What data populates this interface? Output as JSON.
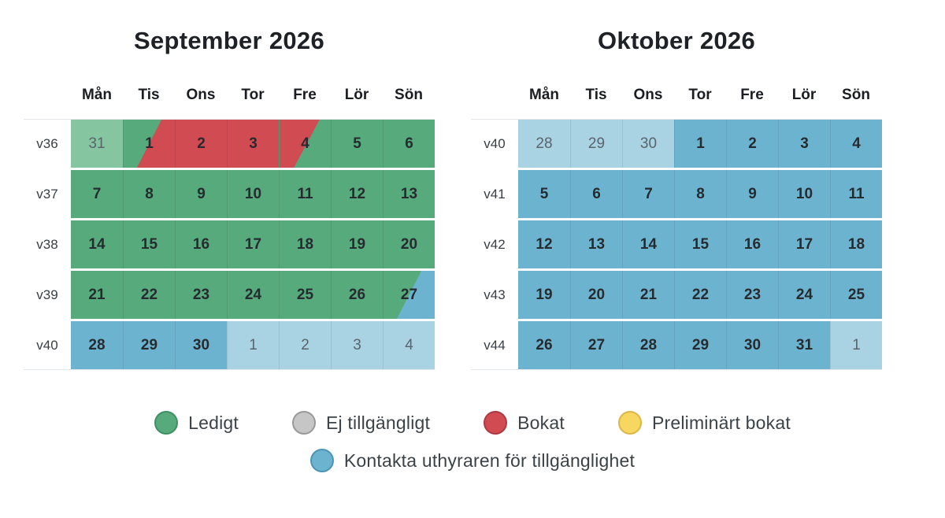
{
  "weekdays": [
    "Mån",
    "Tis",
    "Ons",
    "Tor",
    "Fre",
    "Lör",
    "Sön"
  ],
  "colors": {
    "free": "#56aa7c",
    "free_faded": "#85c6a1",
    "booked": "#d14b53",
    "contact": "#6cb3d0",
    "contact_faded": "#a9d2e3",
    "unavailable": "#c6c6c6",
    "tentative": "#f7d75f"
  },
  "calendars": [
    {
      "title": "September 2026",
      "weeks": [
        {
          "label": "v36",
          "days": [
            {
              "label": "31",
              "base": "free_faded",
              "muted": true
            },
            {
              "label": "1",
              "base": "free",
              "overlay": {
                "type": "booked",
                "side": "right"
              }
            },
            {
              "label": "2",
              "base": "booked"
            },
            {
              "label": "3",
              "base": "booked"
            },
            {
              "label": "4",
              "base": "free",
              "overlay": {
                "type": "booked",
                "side": "left"
              }
            },
            {
              "label": "5",
              "base": "free"
            },
            {
              "label": "6",
              "base": "free"
            }
          ]
        },
        {
          "label": "v37",
          "days": [
            {
              "label": "7",
              "base": "free"
            },
            {
              "label": "8",
              "base": "free"
            },
            {
              "label": "9",
              "base": "free"
            },
            {
              "label": "10",
              "base": "free"
            },
            {
              "label": "11",
              "base": "free"
            },
            {
              "label": "12",
              "base": "free"
            },
            {
              "label": "13",
              "base": "free"
            }
          ]
        },
        {
          "label": "v38",
          "days": [
            {
              "label": "14",
              "base": "free"
            },
            {
              "label": "15",
              "base": "free"
            },
            {
              "label": "16",
              "base": "free"
            },
            {
              "label": "17",
              "base": "free"
            },
            {
              "label": "18",
              "base": "free"
            },
            {
              "label": "19",
              "base": "free"
            },
            {
              "label": "20",
              "base": "free"
            }
          ]
        },
        {
          "label": "v39",
          "days": [
            {
              "label": "21",
              "base": "free"
            },
            {
              "label": "22",
              "base": "free"
            },
            {
              "label": "23",
              "base": "free"
            },
            {
              "label": "24",
              "base": "free"
            },
            {
              "label": "25",
              "base": "free"
            },
            {
              "label": "26",
              "base": "free"
            },
            {
              "label": "27",
              "base": "free",
              "overlay": {
                "type": "contact",
                "side": "right"
              }
            }
          ]
        },
        {
          "label": "v40",
          "days": [
            {
              "label": "28",
              "base": "contact"
            },
            {
              "label": "29",
              "base": "contact"
            },
            {
              "label": "30",
              "base": "contact"
            },
            {
              "label": "1",
              "base": "contact_faded",
              "muted": true
            },
            {
              "label": "2",
              "base": "contact_faded",
              "muted": true
            },
            {
              "label": "3",
              "base": "contact_faded",
              "muted": true
            },
            {
              "label": "4",
              "base": "contact_faded",
              "muted": true
            }
          ]
        }
      ]
    },
    {
      "title": "Oktober 2026",
      "weeks": [
        {
          "label": "v40",
          "days": [
            {
              "label": "28",
              "base": "contact_faded",
              "muted": true
            },
            {
              "label": "29",
              "base": "contact_faded",
              "muted": true
            },
            {
              "label": "30",
              "base": "contact_faded",
              "muted": true
            },
            {
              "label": "1",
              "base": "contact"
            },
            {
              "label": "2",
              "base": "contact"
            },
            {
              "label": "3",
              "base": "contact"
            },
            {
              "label": "4",
              "base": "contact"
            }
          ]
        },
        {
          "label": "v41",
          "days": [
            {
              "label": "5",
              "base": "contact"
            },
            {
              "label": "6",
              "base": "contact"
            },
            {
              "label": "7",
              "base": "contact"
            },
            {
              "label": "8",
              "base": "contact"
            },
            {
              "label": "9",
              "base": "contact"
            },
            {
              "label": "10",
              "base": "contact"
            },
            {
              "label": "11",
              "base": "contact"
            }
          ]
        },
        {
          "label": "v42",
          "days": [
            {
              "label": "12",
              "base": "contact"
            },
            {
              "label": "13",
              "base": "contact"
            },
            {
              "label": "14",
              "base": "contact"
            },
            {
              "label": "15",
              "base": "contact"
            },
            {
              "label": "16",
              "base": "contact"
            },
            {
              "label": "17",
              "base": "contact"
            },
            {
              "label": "18",
              "base": "contact"
            }
          ]
        },
        {
          "label": "v43",
          "days": [
            {
              "label": "19",
              "base": "contact"
            },
            {
              "label": "20",
              "base": "contact"
            },
            {
              "label": "21",
              "base": "contact"
            },
            {
              "label": "22",
              "base": "contact"
            },
            {
              "label": "23",
              "base": "contact"
            },
            {
              "label": "24",
              "base": "contact"
            },
            {
              "label": "25",
              "base": "contact"
            }
          ]
        },
        {
          "label": "v44",
          "days": [
            {
              "label": "26",
              "base": "contact"
            },
            {
              "label": "27",
              "base": "contact"
            },
            {
              "label": "28",
              "base": "contact"
            },
            {
              "label": "29",
              "base": "contact"
            },
            {
              "label": "30",
              "base": "contact"
            },
            {
              "label": "31",
              "base": "contact"
            },
            {
              "label": "1",
              "base": "contact_faded",
              "muted": true
            }
          ]
        }
      ]
    }
  ],
  "legend": {
    "rows": [
      {
        "items": [
          {
            "key": "free",
            "label": "Ledigt",
            "fill": "#56aa7c",
            "border": "#3e8f62"
          },
          {
            "key": "unavailable",
            "label": "Ej tillgängligt",
            "fill": "#c6c6c6",
            "border": "#999999"
          },
          {
            "key": "booked",
            "label": "Bokat",
            "fill": "#d14b53",
            "border": "#ad3a42"
          },
          {
            "key": "tentative",
            "label": "Preliminärt bokat",
            "fill": "#f7d75f",
            "border": "#dbb64a"
          }
        ]
      },
      {
        "items": [
          {
            "key": "contact",
            "label": "Kontakta uthyraren för tillgänglighet",
            "fill": "#6cb3d0",
            "border": "#4d94b4"
          }
        ]
      }
    ]
  }
}
